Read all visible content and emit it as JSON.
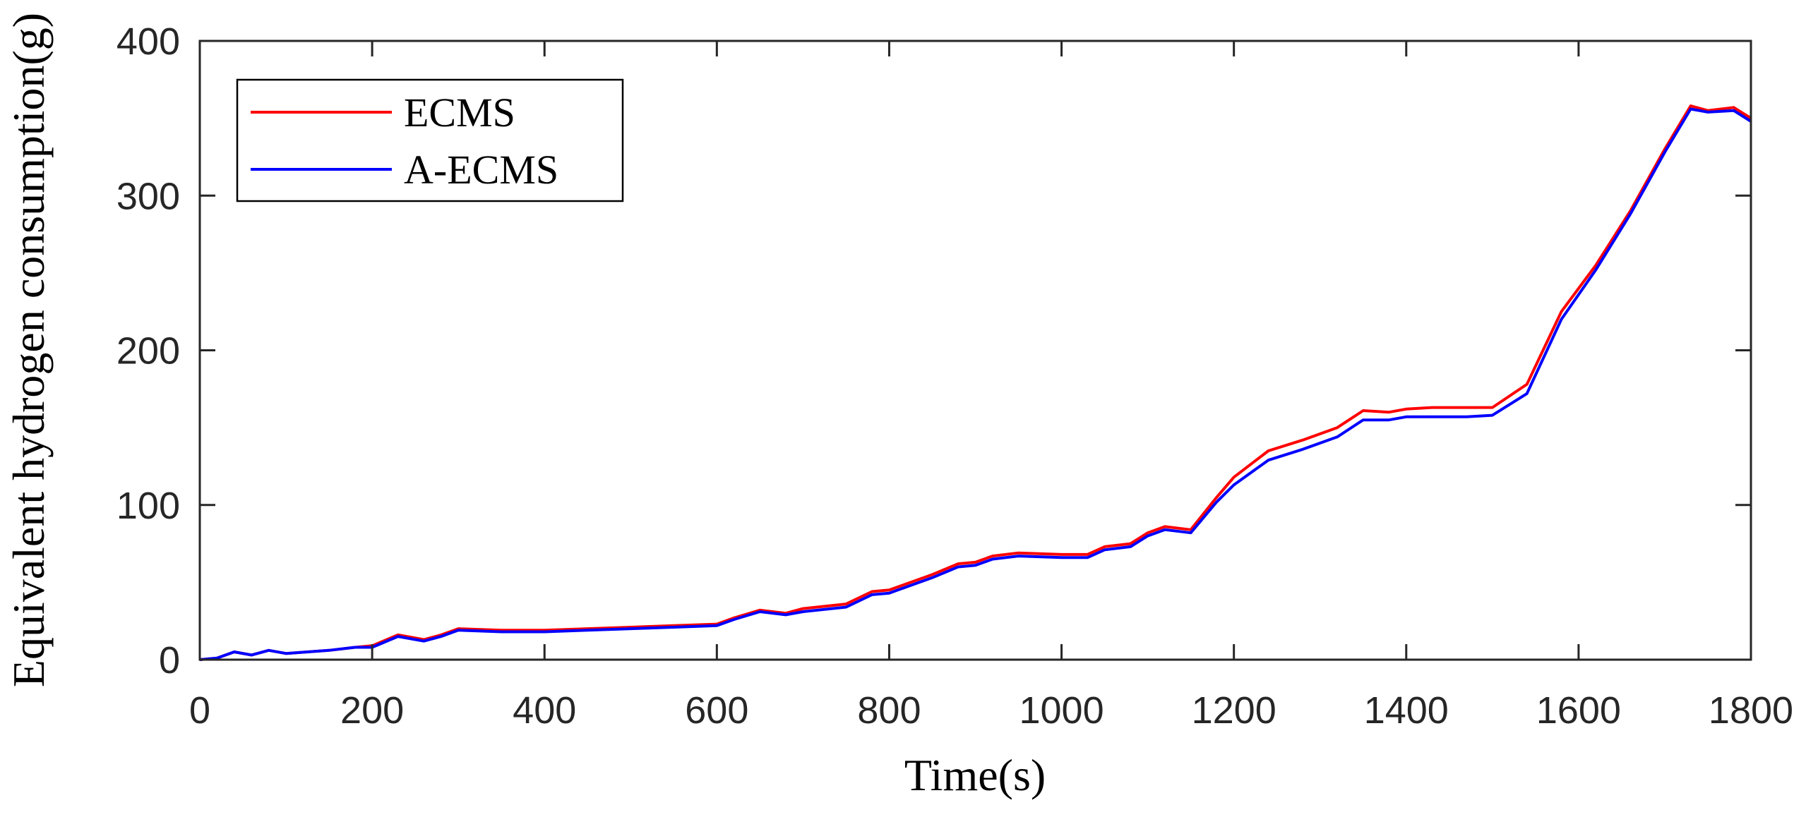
{
  "chart_data": {
    "type": "line",
    "xlabel": "Time(s)",
    "ylabel": "Equivalent hydrogen consumption(g)",
    "xlim": [
      0,
      1800
    ],
    "ylim": [
      0,
      400
    ],
    "xticks": [
      "0",
      "200",
      "400",
      "600",
      "800",
      "1000",
      "1200",
      "1400",
      "1600",
      "1800"
    ],
    "yticks": [
      "0",
      "100",
      "200",
      "300",
      "400"
    ],
    "grid": false,
    "legend_position": "top-left",
    "series": [
      {
        "name": "ECMS",
        "color": "#ff0000",
        "x": [
          0,
          20,
          40,
          60,
          80,
          100,
          150,
          180,
          200,
          230,
          260,
          280,
          300,
          350,
          400,
          450,
          500,
          550,
          600,
          620,
          650,
          680,
          700,
          750,
          780,
          800,
          850,
          880,
          900,
          920,
          950,
          1000,
          1030,
          1050,
          1080,
          1100,
          1120,
          1150,
          1180,
          1200,
          1240,
          1280,
          1320,
          1350,
          1380,
          1400,
          1430,
          1470,
          1500,
          1540,
          1580,
          1620,
          1660,
          1700,
          1730,
          1750,
          1780,
          1800
        ],
        "y": [
          0,
          1,
          5,
          3,
          6,
          4,
          6,
          8,
          9,
          16,
          13,
          16,
          20,
          19,
          19,
          20,
          21,
          22,
          23,
          27,
          32,
          30,
          33,
          36,
          44,
          45,
          55,
          62,
          63,
          67,
          69,
          68,
          68,
          73,
          75,
          82,
          86,
          84,
          105,
          118,
          135,
          142,
          150,
          161,
          160,
          162,
          163,
          163,
          163,
          178,
          225,
          255,
          290,
          330,
          358,
          355,
          357,
          350
        ]
      },
      {
        "name": "A-ECMS",
        "color": "#0000ff",
        "x": [
          0,
          20,
          40,
          60,
          80,
          100,
          150,
          180,
          200,
          230,
          260,
          280,
          300,
          350,
          400,
          450,
          500,
          550,
          600,
          620,
          650,
          680,
          700,
          750,
          780,
          800,
          850,
          880,
          900,
          920,
          950,
          1000,
          1030,
          1050,
          1080,
          1100,
          1120,
          1150,
          1180,
          1200,
          1240,
          1280,
          1320,
          1350,
          1380,
          1400,
          1430,
          1470,
          1500,
          1540,
          1580,
          1620,
          1660,
          1700,
          1730,
          1750,
          1780,
          1800
        ],
        "y": [
          0,
          1,
          5,
          3,
          6,
          4,
          6,
          8,
          8,
          15,
          12,
          15,
          19,
          18,
          18,
          19,
          20,
          21,
          22,
          26,
          31,
          29,
          31,
          34,
          42,
          43,
          53,
          60,
          61,
          65,
          67,
          66,
          66,
          71,
          73,
          80,
          84,
          82,
          102,
          113,
          129,
          136,
          144,
          155,
          155,
          157,
          157,
          157,
          158,
          172,
          220,
          252,
          288,
          328,
          356,
          354,
          355,
          348
        ]
      }
    ]
  }
}
